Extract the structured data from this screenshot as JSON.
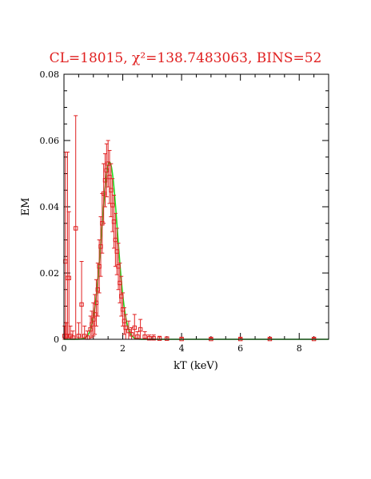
{
  "chart_data": {
    "type": "scatter",
    "title": "CL=18015, χ²=138.7483063, BINS=52",
    "xlabel": "kT (keV)",
    "ylabel": "EM",
    "xlim": [
      0,
      9
    ],
    "ylim": [
      0,
      0.08
    ],
    "x_ticks": [
      0,
      2,
      4,
      6,
      8
    ],
    "y_ticks": [
      0,
      0.02,
      0.04,
      0.06,
      0.08
    ],
    "x_tick_labels": [
      "0",
      "2",
      "4",
      "6",
      "8"
    ],
    "y_tick_labels": [
      "0",
      "0.02",
      "0.04",
      "0.06",
      "0.08"
    ],
    "colors": {
      "data": "#e02020",
      "model": "#22dd22",
      "axes": "#000000",
      "title": "#e02020"
    },
    "series": [
      {
        "kind": "points_with_errorbars",
        "x": [
          0.02,
          0.05,
          0.08,
          0.12,
          0.17,
          0.22,
          0.3,
          0.4,
          0.5,
          0.6,
          0.7,
          0.8,
          0.9,
          0.95,
          1.0,
          1.05,
          1.1,
          1.15,
          1.2,
          1.25,
          1.3,
          1.35,
          1.4,
          1.45,
          1.5,
          1.55,
          1.6,
          1.65,
          1.7,
          1.75,
          1.8,
          1.85,
          1.9,
          1.95,
          2.0,
          2.05,
          2.1,
          2.2,
          2.3,
          2.4,
          2.5,
          2.6,
          2.75,
          2.9,
          3.05,
          3.25,
          3.5,
          4.0,
          5.0,
          6.0,
          7.0,
          8.5
        ],
        "y": [
          0.001,
          0.0235,
          0.001,
          0.0185,
          0.0185,
          0.001,
          0.0005,
          0.0335,
          0.001,
          0.0105,
          0.001,
          0.0005,
          0.003,
          0.0045,
          0.006,
          0.0075,
          0.011,
          0.015,
          0.022,
          0.028,
          0.035,
          0.044,
          0.048,
          0.051,
          0.053,
          0.049,
          0.045,
          0.0405,
          0.0355,
          0.03,
          0.0265,
          0.022,
          0.017,
          0.013,
          0.009,
          0.0055,
          0.0035,
          0.0025,
          0.0015,
          0.0035,
          0.0008,
          0.003,
          0.0008,
          0.0003,
          0.0003,
          0.0002,
          0.0002,
          0.0001,
          0.0001,
          0.0001,
          0.0001,
          0.0001
        ],
        "err": [
          0.003,
          0.033,
          0.004,
          0.038,
          0.02,
          0.003,
          0.002,
          0.034,
          0.004,
          0.013,
          0.003,
          0.002,
          0.004,
          0.004,
          0.005,
          0.006,
          0.007,
          0.008,
          0.008,
          0.009,
          0.009,
          0.009,
          0.008,
          0.008,
          0.007,
          0.008,
          0.008,
          0.008,
          0.008,
          0.008,
          0.007,
          0.007,
          0.006,
          0.006,
          0.005,
          0.004,
          0.004,
          0.003,
          0.002,
          0.004,
          0.0015,
          0.003,
          0.0015,
          0.001,
          0.001,
          0.0007,
          0.0005,
          0.0004,
          0.0003,
          0.0003,
          0.0003,
          0.0003
        ]
      },
      {
        "kind": "model_curve",
        "peak_kT": 1.55,
        "peak_EM": 0.0535,
        "sigma": 0.27
      }
    ]
  }
}
